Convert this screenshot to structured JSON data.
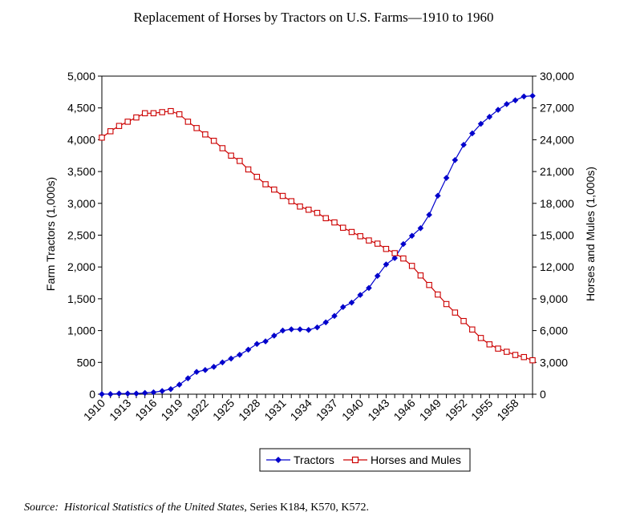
{
  "chart_data": {
    "type": "line",
    "title": "Replacement of Horses by Tractors on U.S. Farms—1910 to 1960",
    "ylabel_left": "Farm Tractors (1,000s)",
    "ylabel_right": "Horses and Mules (1,000s)",
    "xlim": [
      1910,
      1960
    ],
    "ylim_left": [
      0,
      5000
    ],
    "ylim_right": [
      0,
      30000
    ],
    "x_tick_labels": [
      "1910",
      "1913",
      "1916",
      "1919",
      "1922",
      "1925",
      "1928",
      "1931",
      "1934",
      "1937",
      "1940",
      "1943",
      "1946",
      "1949",
      "1952",
      "1955",
      "1958"
    ],
    "y_left_tick_labels": [
      "0",
      "500",
      "1,000",
      "1,500",
      "2,000",
      "2,500",
      "3,000",
      "3,500",
      "4,000",
      "4,500",
      "5,000"
    ],
    "y_right_tick_labels": [
      "0",
      "3,000",
      "6,000",
      "9,000",
      "12,000",
      "15,000",
      "18,000",
      "21,000",
      "24,000",
      "27,000",
      "30,000"
    ],
    "legend_placement": "bottom-center",
    "grid": false,
    "x": [
      1910,
      1911,
      1912,
      1913,
      1914,
      1915,
      1916,
      1917,
      1918,
      1919,
      1920,
      1921,
      1922,
      1923,
      1924,
      1925,
      1926,
      1927,
      1928,
      1929,
      1930,
      1931,
      1932,
      1933,
      1934,
      1935,
      1936,
      1937,
      1938,
      1939,
      1940,
      1941,
      1942,
      1943,
      1944,
      1945,
      1946,
      1947,
      1948,
      1949,
      1950,
      1951,
      1952,
      1953,
      1954,
      1955,
      1956,
      1957,
      1958,
      1959,
      1960
    ],
    "series": [
      {
        "name": "Tractors",
        "axis": "left",
        "color": "#0000cc",
        "marker": "diamond",
        "values": [
          1,
          2,
          10,
          10,
          10,
          20,
          30,
          50,
          80,
          150,
          250,
          350,
          380,
          430,
          500,
          560,
          620,
          700,
          790,
          830,
          920,
          1000,
          1020,
          1020,
          1010,
          1050,
          1130,
          1230,
          1370,
          1440,
          1560,
          1670,
          1860,
          2040,
          2140,
          2360,
          2490,
          2610,
          2820,
          3120,
          3400,
          3680,
          3920,
          4100,
          4250,
          4360,
          4470,
          4560,
          4620,
          4680,
          4690
        ]
      },
      {
        "name": "Horses and Mules",
        "axis": "right",
        "color": "#cc0000",
        "marker": "open-square",
        "values": [
          24200,
          24800,
          25300,
          25700,
          26100,
          26500,
          26500,
          26600,
          26700,
          26400,
          25700,
          25100,
          24500,
          23900,
          23200,
          22500,
          22000,
          21200,
          20500,
          19800,
          19300,
          18700,
          18200,
          17700,
          17400,
          17100,
          16600,
          16200,
          15700,
          15300,
          14900,
          14500,
          14200,
          13700,
          13300,
          12800,
          12100,
          11200,
          10300,
          9400,
          8500,
          7700,
          6900,
          6100,
          5300,
          4700,
          4300,
          4000,
          3700,
          3500,
          3200
        ]
      }
    ]
  },
  "source": {
    "prefix": "Source:",
    "title": "Historical Statistics of the United States",
    "suffix": ", Series K184, K570, K572."
  }
}
